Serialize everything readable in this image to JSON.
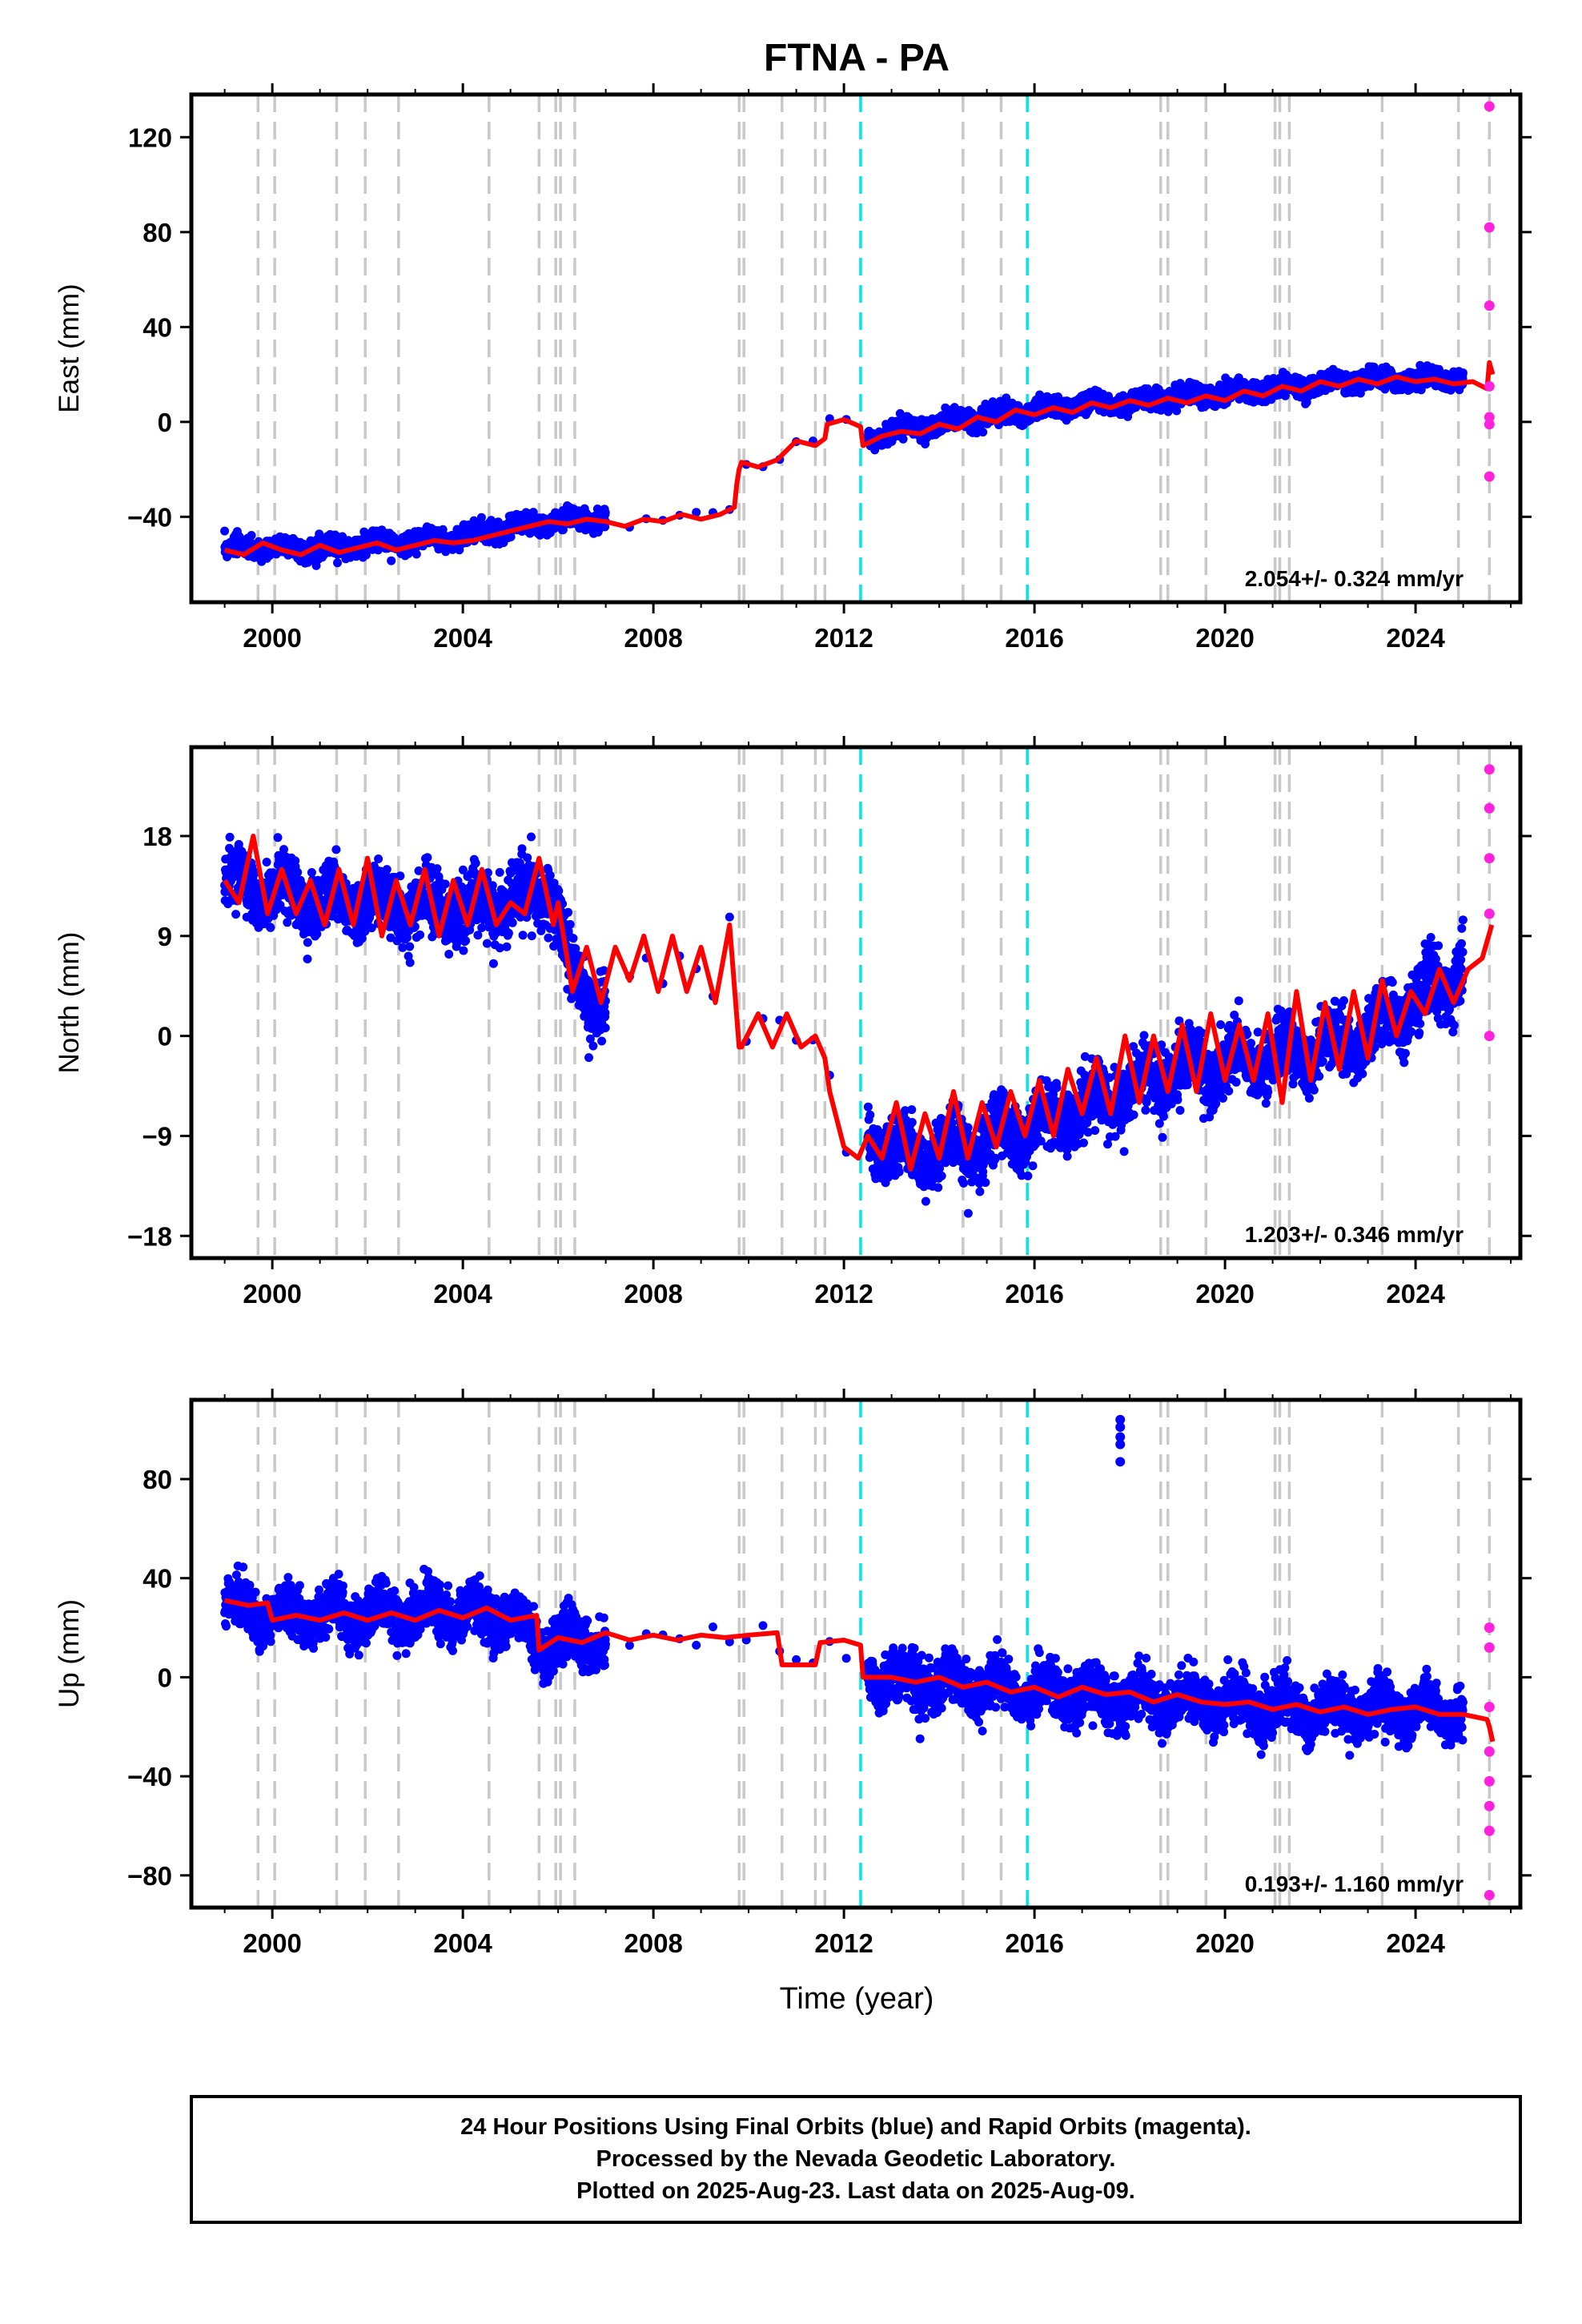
{
  "colors": {
    "final_points": "#0000ff",
    "rapid_points": "#ff22dd",
    "model_line": "#ff0000",
    "equipment_change": "#c8c8c8",
    "antenna_change": "#00e5ee"
  },
  "chart_data": {
    "type": "scatter",
    "title": "FTNA - PA",
    "xlabel": "Time (year)",
    "xlim": [
      1998.3,
      2026.2
    ],
    "xticks": [
      2000,
      2004,
      2008,
      2012,
      2016,
      2020,
      2024
    ],
    "x_tick_labels": [
      "2000",
      "2004",
      "2008",
      "2012",
      "2016",
      "2020",
      "2024"
    ],
    "grid": false,
    "equipment_change_years": [
      1999.7,
      2000.05,
      2001.35,
      2001.95,
      2002.65,
      2004.55,
      2005.6,
      2005.95,
      2006.05,
      2006.35,
      2009.8,
      2009.9,
      2010.7,
      2011.4,
      2011.6,
      2014.5,
      2015.3,
      2018.65,
      2018.8,
      2019.6,
      2021.05,
      2021.15,
      2021.35,
      2023.3,
      2024.9,
      2025.55
    ],
    "antenna_change_years": [
      2012.35,
      2015.85
    ],
    "panels": [
      {
        "component": "east",
        "ylabel": "East (mm)",
        "ylim": [
          -76,
          138
        ],
        "yticks": [
          -40,
          0,
          40,
          80,
          120
        ],
        "y_tick_labels": [
          "−40",
          "0",
          "40",
          "80",
          "120"
        ],
        "rate_label": "2.054+/- 0.324 mm/yr",
        "scatter_series": [
          {
            "x": [
              1999.0,
              2000.0,
              2001.0,
              2002.0,
              2003.0,
              2004.0,
              2005.0,
              2006.0,
              2007.0,
              2012.5,
              2013.0,
              2014.0,
              2015.0,
              2016.0,
              2017.0,
              2018.0,
              2019.0,
              2020.0,
              2021.0,
              2022.0,
              2023.0,
              2024.0,
              2025.0
            ],
            "trend": [
              -53.5,
              -53.5,
              -53.0,
              -51.5,
              -50.0,
              -48.0,
              -44.5,
              -41.5,
              -40.5,
              -7.0,
              -4.5,
              -1.0,
              2.5,
              5.0,
              7.0,
              8.5,
              10.5,
              12.0,
              14.0,
              16.0,
              17.5,
              17.5,
              18.0
            ],
            "scatter": 3.5
          }
        ],
        "model_line": {
          "x": [
            1999.0,
            1999.4,
            1999.8,
            2000.2,
            2000.6,
            2001.0,
            2001.4,
            2001.8,
            2002.2,
            2002.6,
            2003.0,
            2003.4,
            2003.8,
            2004.2,
            2004.6,
            2005.0,
            2005.4,
            2005.8,
            2006.2,
            2006.6,
            2007.0,
            2007.4,
            2007.8,
            2008.2,
            2008.6,
            2009.0,
            2009.4,
            2009.7,
            2009.75,
            2009.8,
            2009.85,
            2010.2,
            2010.6,
            2011.0,
            2011.4,
            2011.6,
            2011.65,
            2012.0,
            2012.35,
            2012.4,
            2012.8,
            2013.2,
            2013.6,
            2014.0,
            2014.4,
            2014.8,
            2015.2,
            2015.6,
            2016.0,
            2016.4,
            2016.8,
            2017.2,
            2017.6,
            2018.0,
            2018.4,
            2018.8,
            2019.2,
            2019.6,
            2020.0,
            2020.4,
            2020.8,
            2021.2,
            2021.6,
            2022.0,
            2022.4,
            2022.8,
            2023.2,
            2023.6,
            2024.0,
            2024.4,
            2024.8,
            2025.2,
            2025.5,
            2025.55,
            2025.62
          ],
          "y": [
            -54,
            -56,
            -51,
            -54,
            -56,
            -52,
            -55,
            -53,
            -51,
            -54,
            -52,
            -50,
            -51,
            -50,
            -48,
            -46,
            -44,
            -42,
            -43,
            -41,
            -42,
            -44,
            -41,
            -42,
            -39,
            -41,
            -39,
            -36,
            -26,
            -20,
            -17,
            -19,
            -16,
            -8,
            -10,
            -7,
            -1,
            1,
            -2,
            -10,
            -6,
            -4,
            -5,
            -1,
            -3,
            2,
            0,
            5,
            3,
            6,
            4,
            8,
            6,
            9,
            7,
            10,
            8,
            11,
            9,
            13,
            11,
            15,
            13,
            17,
            15,
            18,
            16,
            19,
            17,
            18,
            16,
            17,
            14,
            25,
            20
          ]
        },
        "rapid_points": {
          "x": [
            2025.55,
            2025.55,
            2025.55,
            2025.55,
            2025.55,
            2025.55,
            2025.55
          ],
          "y": [
            133,
            82,
            49,
            15,
            2,
            -1,
            -23
          ]
        }
      },
      {
        "component": "north",
        "ylabel": "North (mm)",
        "ylim": [
          -20,
          26
        ],
        "yticks": [
          -18,
          -9,
          0,
          9,
          18
        ],
        "y_tick_labels": [
          "−18",
          "−9",
          "0",
          "9",
          "18"
        ],
        "rate_label": "1.203+/- 0.346 mm/yr",
        "scatter_series": [
          {
            "x": [
              1999.0,
              2000.0,
              2001.0,
              2002.0,
              2003.0,
              2004.0,
              2005.0,
              2005.9,
              2006.2,
              2006.6,
              2007.0,
              2012.5,
              2013.0,
              2014.0,
              2015.0,
              2016.0,
              2017.0,
              2018.0,
              2019.0,
              2020.0,
              2021.0,
              2022.0,
              2023.0,
              2024.0,
              2025.0
            ],
            "trend": [
              14.0,
              13.0,
              12.0,
              12.0,
              11.5,
              11.5,
              12.0,
              13.5,
              6.0,
              4.0,
              3.0,
              -8.5,
              -10.5,
              -10.5,
              -9.5,
              -8.0,
              -6.5,
              -5.0,
              -3.0,
              -2.5,
              -2.0,
              -1.0,
              0.0,
              3.0,
              6.0
            ],
            "scatter": 2.5
          }
        ],
        "model_line": {
          "x": [
            1999.0,
            1999.3,
            1999.6,
            1999.9,
            2000.2,
            2000.5,
            2000.8,
            2001.1,
            2001.4,
            2001.7,
            2002.0,
            2002.3,
            2002.6,
            2002.9,
            2003.2,
            2003.5,
            2003.8,
            2004.1,
            2004.4,
            2004.7,
            2005.0,
            2005.3,
            2005.6,
            2005.9,
            2006.0,
            2006.3,
            2006.6,
            2006.9,
            2007.2,
            2007.5,
            2007.8,
            2008.1,
            2008.4,
            2008.7,
            2009.0,
            2009.3,
            2009.6,
            2009.8,
            2009.85,
            2010.2,
            2010.5,
            2010.8,
            2011.1,
            2011.4,
            2011.6,
            2011.7,
            2012.0,
            2012.3,
            2012.5,
            2012.8,
            2013.1,
            2013.4,
            2013.7,
            2014.0,
            2014.3,
            2014.6,
            2014.9,
            2015.2,
            2015.5,
            2015.8,
            2016.1,
            2016.4,
            2016.7,
            2017.0,
            2017.3,
            2017.6,
            2017.9,
            2018.2,
            2018.5,
            2018.8,
            2019.1,
            2019.4,
            2019.7,
            2020.0,
            2020.3,
            2020.6,
            2020.9,
            2021.2,
            2021.5,
            2021.8,
            2022.1,
            2022.4,
            2022.7,
            2023.0,
            2023.3,
            2023.6,
            2023.9,
            2024.2,
            2024.5,
            2024.8,
            2025.1,
            2025.4,
            2025.6
          ],
          "y": [
            14,
            12,
            18,
            11,
            15,
            11,
            14,
            10,
            15,
            10,
            16,
            9,
            14,
            10,
            15,
            9,
            14,
            10,
            15,
            10,
            12,
            11,
            16,
            10,
            12,
            4,
            8,
            3,
            8,
            5,
            9,
            4,
            9,
            4,
            8,
            3,
            10,
            -1,
            -1,
            2,
            -1,
            2,
            -1,
            0,
            -2,
            -5,
            -10,
            -11,
            -9,
            -11,
            -6,
            -12,
            -7,
            -11,
            -5,
            -11,
            -6,
            -10,
            -5,
            -9,
            -4,
            -9,
            -3,
            -7,
            -2,
            -7,
            0,
            -6,
            0,
            -5,
            1,
            -5,
            2,
            -4,
            1,
            -4,
            2,
            -6,
            4,
            -4,
            3,
            -3,
            4,
            -2,
            5,
            0,
            4,
            2,
            6,
            3,
            6,
            7,
            10
          ]
        },
        "rapid_points": {
          "x": [
            2025.55,
            2025.55,
            2025.55,
            2025.55,
            2025.55
          ],
          "y": [
            24,
            20.5,
            16,
            11,
            0
          ]
        }
      },
      {
        "component": "up",
        "ylabel": "Up (mm)",
        "ylim": [
          -93,
          112
        ],
        "yticks": [
          -80,
          -40,
          0,
          40,
          80
        ],
        "y_tick_labels": [
          "−80",
          "−40",
          "0",
          "40",
          "80"
        ],
        "rate_label": "0.193+/- 1.160 mm/yr",
        "scatter_series": [
          {
            "x": [
              1999.0,
              2000.0,
              2001.0,
              2002.0,
              2003.0,
              2004.0,
              2005.0,
              2005.6,
              2006.0,
              2007.0,
              2012.5,
              2013.0,
              2014.0,
              2015.0,
              2016.0,
              2017.0,
              2018.0,
              2019.0,
              2020.0,
              2021.0,
              2022.0,
              2023.0,
              2024.0,
              2025.0
            ],
            "trend": [
              28,
              26,
              25,
              25,
              26,
              26,
              25,
              12,
              14,
              15,
              2,
              0,
              -2,
              -4,
              -6,
              -7,
              -9,
              -10,
              -11,
              -12,
              -13,
              -13,
              -14,
              -15
            ],
            "scatter": 9.0
          }
        ],
        "model_line": {
          "x": [
            1999.0,
            1999.5,
            1999.9,
            2000.0,
            2000.5,
            2001.0,
            2001.5,
            2002.0,
            2002.5,
            2003.0,
            2003.5,
            2004.0,
            2004.5,
            2005.0,
            2005.55,
            2005.6,
            2006.0,
            2006.5,
            2007.0,
            2007.5,
            2008.0,
            2008.5,
            2009.0,
            2009.5,
            2010.0,
            2010.6,
            2010.7,
            2011.4,
            2011.5,
            2012.0,
            2012.35,
            2012.4,
            2013.0,
            2013.5,
            2014.0,
            2014.5,
            2015.0,
            2015.5,
            2016.0,
            2016.5,
            2017.0,
            2017.5,
            2018.0,
            2018.5,
            2019.0,
            2019.5,
            2020.0,
            2020.5,
            2021.0,
            2021.5,
            2022.0,
            2022.5,
            2023.0,
            2023.5,
            2024.0,
            2024.5,
            2025.0,
            2025.5,
            2025.55,
            2025.62
          ],
          "y": [
            31,
            29,
            30,
            23,
            25,
            23,
            26,
            23,
            26,
            23,
            27,
            24,
            28,
            23,
            25,
            11,
            16,
            14,
            18,
            15,
            17,
            15,
            17,
            16,
            17,
            18,
            5,
            5,
            14,
            15,
            13,
            0,
            0,
            -2,
            0,
            -4,
            -2,
            -6,
            -4,
            -8,
            -4,
            -7,
            -6,
            -10,
            -7,
            -10,
            -11,
            -10,
            -13,
            -11,
            -14,
            -12,
            -15,
            -13,
            -12,
            -15,
            -15,
            -17,
            -20,
            -26
          ]
        },
        "outlier_points": {
          "x": [
            2017.8,
            2017.8,
            2017.8,
            2017.8,
            2017.8
          ],
          "y": [
            104,
            101,
            97,
            94,
            87
          ]
        },
        "rapid_points": {
          "x": [
            2025.55,
            2025.55,
            2025.55,
            2025.55,
            2025.55,
            2025.55,
            2025.55,
            2025.55
          ],
          "y": [
            20,
            12,
            -12,
            -30,
            -42,
            -52,
            -62,
            -88
          ]
        }
      }
    ]
  },
  "footer": {
    "line1": "24 Hour Positions Using Final Orbits (blue) and Rapid Orbits (magenta).",
    "line2": "Processed by the Nevada Geodetic Laboratory.",
    "line3": "Plotted on 2025-Aug-23. Last data on 2025-Aug-09."
  }
}
